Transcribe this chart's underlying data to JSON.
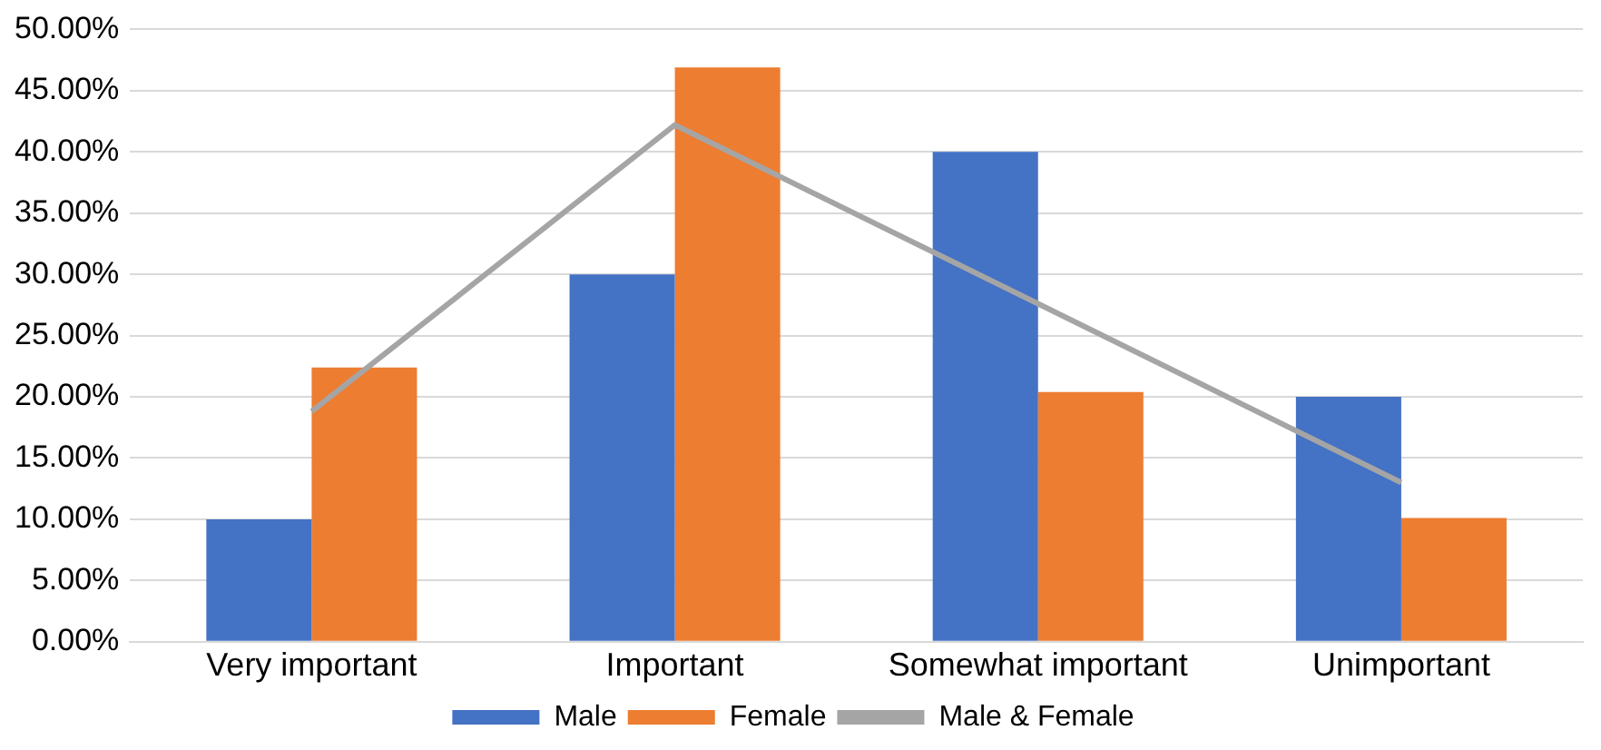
{
  "chart_data": {
    "type": "bar",
    "categories": [
      "Very important",
      "Important",
      "Somewhat important",
      "Unimportant"
    ],
    "series": [
      {
        "name": "Male",
        "color": "#4472c4",
        "values": [
          10,
          30,
          40,
          20
        ]
      },
      {
        "name": "Female",
        "color": "#ed7d31",
        "values": [
          22.4,
          46.9,
          20.4,
          10.1
        ]
      },
      {
        "name": "Male & Female",
        "type": "line",
        "color": "#a5a5a5",
        "values": [
          18.8,
          42.2,
          27.6,
          13.0
        ]
      }
    ],
    "ylim": [
      0,
      50
    ],
    "yticks": [
      {
        "value": 0,
        "label": "0.00%"
      },
      {
        "value": 5,
        "label": "5.00%"
      },
      {
        "value": 10,
        "label": "10.00%"
      },
      {
        "value": 15,
        "label": "15.00%"
      },
      {
        "value": 20,
        "label": "20.00%"
      },
      {
        "value": 25,
        "label": "25.00%"
      },
      {
        "value": 30,
        "label": "30.00%"
      },
      {
        "value": 35,
        "label": "35.00%"
      },
      {
        "value": 40,
        "label": "40.00%"
      },
      {
        "value": 45,
        "label": "45.00%"
      },
      {
        "value": 50,
        "label": "50.00%"
      }
    ],
    "grid": "y",
    "legend": "bottom",
    "marker": "none"
  }
}
